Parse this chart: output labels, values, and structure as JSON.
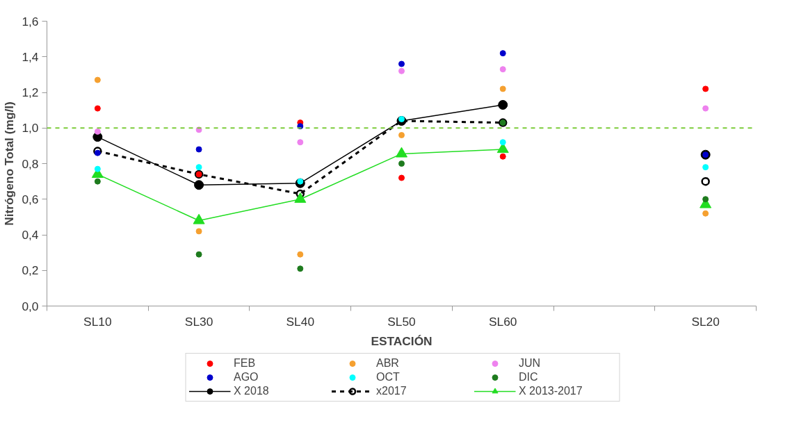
{
  "chart_data": {
    "type": "scatter",
    "xlabel": "ESTACIÓN",
    "ylabel": "Nitrógeno Total (mg/l)",
    "categories": [
      "SL10",
      "SL30",
      "SL40",
      "SL50",
      "SL60",
      null,
      "SL20"
    ],
    "ylim": [
      0,
      1.6
    ],
    "yticks": [
      {
        "value": 0,
        "label": "0,0"
      },
      {
        "value": 0.2,
        "label": "0,2"
      },
      {
        "value": 0.4,
        "label": "0,4"
      },
      {
        "value": 0.6,
        "label": "0,6"
      },
      {
        "value": 0.8,
        "label": "0,8"
      },
      {
        "value": 1.0,
        "label": "1,0"
      },
      {
        "value": 1.2,
        "label": "1,2"
      },
      {
        "value": 1.4,
        "label": "1,4"
      },
      {
        "value": 1.6,
        "label": "1,6"
      }
    ],
    "grid": false,
    "legend": "bottom",
    "marker": "circle",
    "ref_lines": [
      {
        "axis": "y",
        "value": 1.0,
        "color": "#7ccc3a",
        "line_style": "dashed"
      }
    ],
    "series": [
      {
        "name": "FEB",
        "color": "#ff0000",
        "values": [
          1.11,
          0.74,
          1.03,
          0.72,
          0.84,
          null,
          1.22
        ]
      },
      {
        "name": "ABR",
        "color": "#f5a030",
        "values": [
          1.27,
          0.42,
          0.29,
          0.96,
          1.22,
          null,
          0.52
        ]
      },
      {
        "name": "JUN",
        "color": "#ee82ee",
        "values": [
          0.98,
          0.99,
          0.92,
          1.32,
          1.33,
          null,
          1.11
        ]
      },
      {
        "name": "AGO",
        "color": "#0000cc",
        "values": [
          0.86,
          0.88,
          1.01,
          1.36,
          1.42,
          null,
          0.85
        ]
      },
      {
        "name": "OCT",
        "color": "#00ffff",
        "values": [
          0.77,
          0.78,
          0.7,
          1.05,
          0.92,
          null,
          0.78
        ]
      },
      {
        "name": "DIC",
        "color": "#1e7b1e",
        "values": [
          0.7,
          0.29,
          0.21,
          0.8,
          1.03,
          null,
          0.6
        ]
      },
      {
        "name": "X 2018",
        "type": "line",
        "color": "#000000",
        "marker": "circle",
        "line_style": "solid",
        "values": [
          0.95,
          0.68,
          0.69,
          1.04,
          1.13,
          null,
          0.85
        ]
      },
      {
        "name": "x2017",
        "type": "line",
        "color": "#000000",
        "marker": "open_circle",
        "line_style": "dashed",
        "values": [
          0.87,
          0.74,
          0.63,
          1.04,
          1.03,
          null,
          0.7
        ]
      },
      {
        "name": "X 2013-2017",
        "type": "line",
        "color": "#22dd22",
        "marker": "triangle",
        "line_style": "solid",
        "values": [
          0.74,
          0.48,
          0.6,
          0.855,
          0.88,
          null,
          0.57
        ]
      }
    ]
  }
}
